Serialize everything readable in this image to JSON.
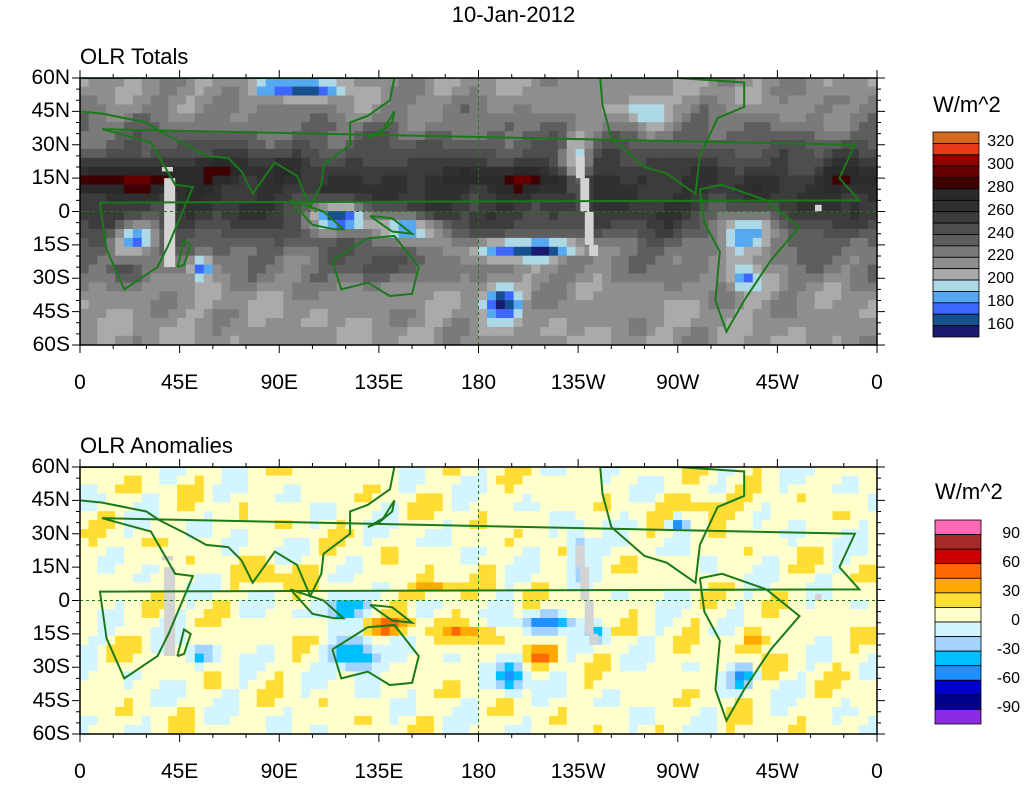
{
  "title": "10-Jan-2012",
  "panels": [
    {
      "title": "OLR Totals",
      "units": "W/m^2",
      "levels": [
        160,
        170,
        180,
        190,
        200,
        210,
        220,
        230,
        240,
        250,
        260,
        270,
        280,
        290,
        300,
        310,
        320
      ],
      "colorbar_labels": [
        "320",
        "300",
        "280",
        "260",
        "240",
        "220",
        "200",
        "180",
        "160"
      ],
      "colors": [
        "#1a1a70",
        "#17508e",
        "#3d66ff",
        "#56a8f0",
        "#add8e6",
        "#aaaaaa",
        "#8e8e8e",
        "#7a7a7a",
        "#5e5e5e",
        "#4e4e4e",
        "#3c3c3c",
        "#303030",
        "#2a2a2a",
        "#3e0000",
        "#660000",
        "#8e0000",
        "#e8381a",
        "#d2691e"
      ]
    },
    {
      "title": "OLR Anomalies",
      "units": "W/m^2",
      "levels": [
        -90,
        -75,
        -60,
        -45,
        -30,
        -15,
        0,
        15,
        30,
        45,
        60,
        75,
        90
      ],
      "colorbar_labels": [
        "90",
        "60",
        "30",
        "0",
        "-30",
        "-60",
        "-90"
      ],
      "colors": [
        "#8a2be2",
        "#00008b",
        "#0000cd",
        "#1e90ff",
        "#00bfff",
        "#a4d3ff",
        "#d2f5ff",
        "#ffffcc",
        "#ffdd33",
        "#ffaa00",
        "#ff6a00",
        "#cc0000",
        "#a52a2a",
        "#ff69b4"
      ]
    }
  ],
  "axes": {
    "lat_labels": [
      "60N",
      "45N",
      "30N",
      "15N",
      "0",
      "15S",
      "30S",
      "45S",
      "60S"
    ],
    "lon_labels": [
      "0",
      "45E",
      "90E",
      "135E",
      "180",
      "135W",
      "90W",
      "45W",
      "0"
    ]
  },
  "map_colors": {
    "coast": "#1a7a1a",
    "missing": "#d3d3d3"
  }
}
